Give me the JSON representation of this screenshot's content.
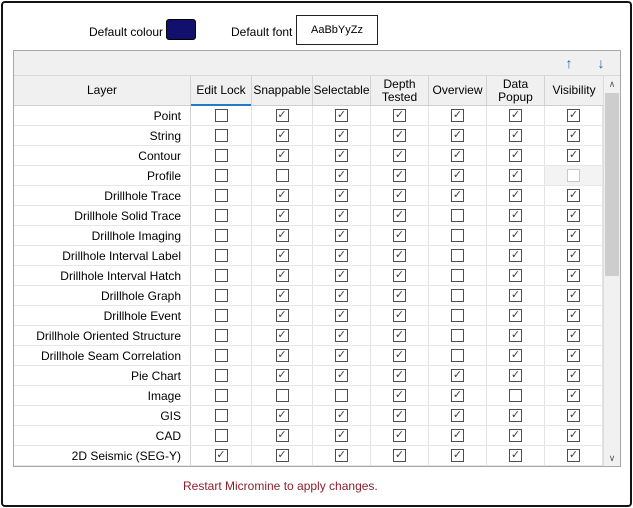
{
  "controls": {
    "default_colour_label": "Default colour",
    "default_colour_value": "#11116d",
    "default_font_label": "Default font",
    "default_font_sample": "AaBbYyZz"
  },
  "toolbar": {
    "move_up_icon": "↑",
    "move_down_icon": "↓"
  },
  "table": {
    "columns": [
      "Layer",
      "Edit Lock",
      "Snappable",
      "Selectable",
      "Depth Tested",
      "Overview",
      "Data Popup",
      "Visibility"
    ],
    "focused_column_index": 1,
    "rows": [
      {
        "layer": "Point",
        "states": [
          false,
          true,
          true,
          true,
          true,
          true,
          true
        ]
      },
      {
        "layer": "String",
        "states": [
          false,
          true,
          true,
          true,
          true,
          true,
          true
        ]
      },
      {
        "layer": "Contour",
        "states": [
          false,
          true,
          true,
          true,
          true,
          true,
          true
        ]
      },
      {
        "layer": "Profile",
        "states": [
          false,
          false,
          true,
          true,
          true,
          true,
          "disabled"
        ]
      },
      {
        "layer": "Drillhole Trace",
        "states": [
          false,
          true,
          true,
          true,
          true,
          true,
          true
        ]
      },
      {
        "layer": "Drillhole Solid Trace",
        "states": [
          false,
          true,
          true,
          true,
          false,
          true,
          true
        ]
      },
      {
        "layer": "Drillhole Imaging",
        "states": [
          false,
          true,
          true,
          true,
          false,
          true,
          true
        ]
      },
      {
        "layer": "Drillhole Interval Label",
        "states": [
          false,
          true,
          true,
          true,
          false,
          true,
          true
        ]
      },
      {
        "layer": "Drillhole Interval Hatch",
        "states": [
          false,
          true,
          true,
          true,
          false,
          true,
          true
        ]
      },
      {
        "layer": "Drillhole Graph",
        "states": [
          false,
          true,
          true,
          true,
          false,
          true,
          true
        ]
      },
      {
        "layer": "Drillhole Event",
        "states": [
          false,
          true,
          true,
          true,
          false,
          true,
          true
        ]
      },
      {
        "layer": "Drillhole Oriented Structure",
        "states": [
          false,
          true,
          true,
          true,
          false,
          true,
          true
        ]
      },
      {
        "layer": "Drillhole Seam Correlation",
        "states": [
          false,
          true,
          true,
          true,
          false,
          true,
          true
        ]
      },
      {
        "layer": "Pie Chart",
        "states": [
          false,
          true,
          true,
          true,
          true,
          true,
          true
        ]
      },
      {
        "layer": "Image",
        "states": [
          false,
          false,
          false,
          true,
          true,
          false,
          true
        ]
      },
      {
        "layer": "GIS",
        "states": [
          false,
          true,
          true,
          true,
          true,
          true,
          true
        ]
      },
      {
        "layer": "CAD",
        "states": [
          false,
          true,
          true,
          true,
          true,
          true,
          true
        ]
      },
      {
        "layer": "2D Seismic (SEG-Y)",
        "states": [
          true,
          true,
          true,
          true,
          true,
          true,
          true
        ]
      }
    ]
  },
  "scrollbar": {
    "up_icon": "∧",
    "down_icon": "∨"
  },
  "icons": {
    "checkmark": "✓"
  },
  "footer": {
    "restart_note": "Restart Micromine to apply changes."
  },
  "colors": {
    "accent_blue": "#1e63a8",
    "focus_underline": "#2878c8",
    "swatch_navy": "#11116d",
    "restart_red": "#8b1f2b"
  }
}
